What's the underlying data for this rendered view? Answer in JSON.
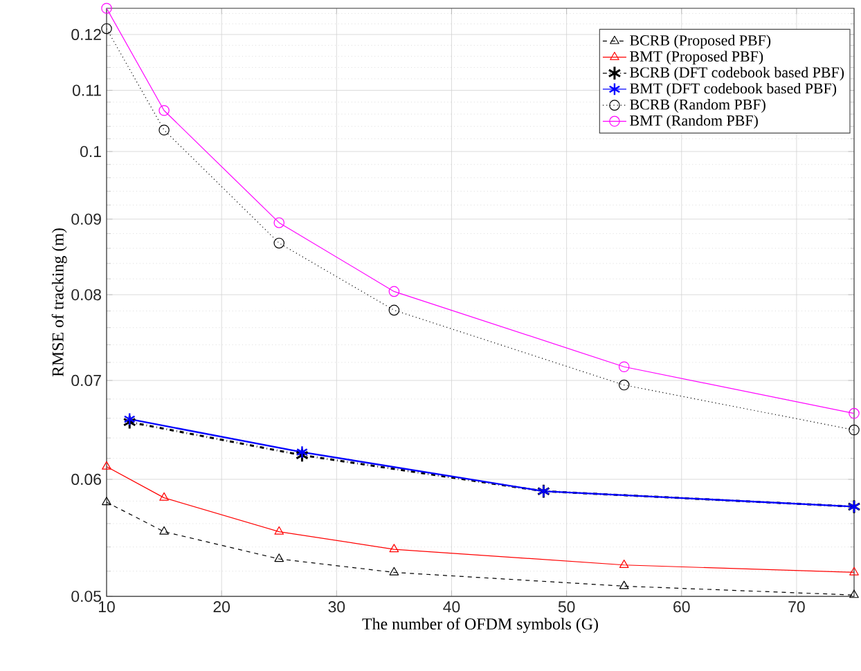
{
  "chart_data": {
    "type": "line",
    "xlabel": "The number of OFDM symbols (G)",
    "ylabel": "RMSE of tracking (m)",
    "xlim": [
      10,
      75
    ],
    "xticks": [
      10,
      20,
      30,
      40,
      50,
      60,
      70
    ],
    "ylim": [
      0.05,
      0.125
    ],
    "yticks": [
      0.05,
      0.06,
      0.07,
      0.08,
      0.09,
      0.1,
      0.11,
      0.12
    ],
    "log": "y",
    "grid": true,
    "legend": "top right",
    "series": [
      {
        "name": "BCRB (Proposed PBF)",
        "color": "#000000",
        "marker": "triangle",
        "line_style": "dashed",
        "x": [
          10,
          15,
          25,
          35,
          55,
          75
        ],
        "values": [
          0.0579,
          0.0553,
          0.053,
          0.0519,
          0.0508,
          0.0501
        ]
      },
      {
        "name": "BMT (Proposed PBF)",
        "color": "#ff0000",
        "marker": "triangle",
        "line_style": "solid",
        "x": [
          10,
          15,
          25,
          35,
          55,
          75
        ],
        "values": [
          0.0612,
          0.0583,
          0.0553,
          0.0538,
          0.0525,
          0.0519
        ]
      },
      {
        "name": "BCRB (DFT codebook based PBF)",
        "color": "#000000",
        "marker": "cross",
        "line_style": "dashdot",
        "x": [
          12,
          27,
          48,
          75
        ],
        "values": [
          0.0656,
          0.0623,
          0.0589,
          0.0575
        ]
      },
      {
        "name": "BMT (DFT codebook based PBF)",
        "color": "#0000ff",
        "marker": "cross",
        "line_style": "solid",
        "x": [
          12,
          27,
          48,
          75
        ],
        "values": [
          0.0659,
          0.0626,
          0.0589,
          0.0575
        ]
      },
      {
        "name": "BCRB (Random PBF)",
        "color": "#000000",
        "marker": "circle",
        "line_style": "dotted",
        "x": [
          10,
          15,
          25,
          35,
          55,
          75
        ],
        "values": [
          0.1211,
          0.1034,
          0.0867,
          0.0781,
          0.0695,
          0.0648
        ]
      },
      {
        "name": "BMT (Random PBF)",
        "color": "#ff00ff",
        "marker": "circle",
        "line_style": "solid",
        "x": [
          10,
          15,
          25,
          35,
          55,
          75
        ],
        "values": [
          0.125,
          0.1066,
          0.0895,
          0.0804,
          0.0715,
          0.0665
        ]
      }
    ]
  }
}
